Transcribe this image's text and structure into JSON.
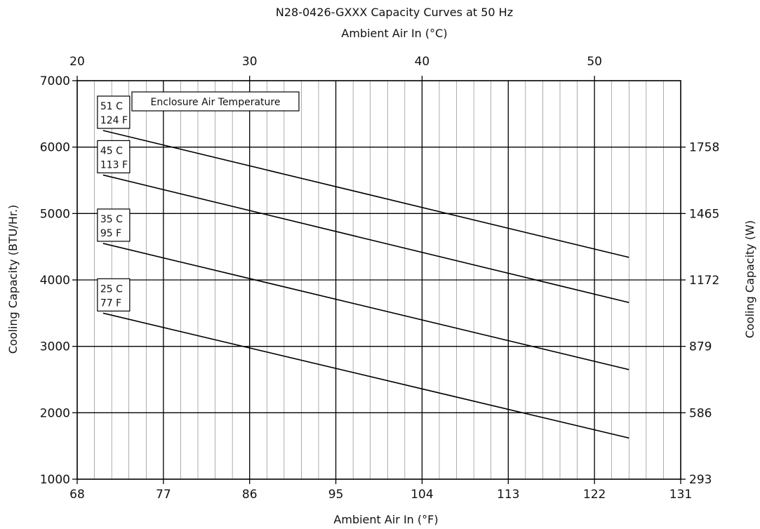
{
  "chart_data": {
    "type": "line",
    "title": "N28-0426-GXXX Capacity Curves at 50 Hz",
    "x_top_label": "Ambient Air In (°C)",
    "xlabel": "Ambient Air In (°F)",
    "ylabel": "Cooling Capacity (BTU/Hr.)",
    "y2label": "Cooling Capacity (W)",
    "xlim": [
      68,
      131
    ],
    "ylim": [
      1000,
      7000
    ],
    "x_ticks": [
      68,
      77,
      86,
      95,
      104,
      113,
      122,
      131
    ],
    "x_top_ticks": [
      20,
      30,
      40,
      50
    ],
    "x_top_tick_values_F": [
      68,
      86,
      104,
      122
    ],
    "y_ticks": [
      1000,
      2000,
      3000,
      4000,
      5000,
      6000,
      7000
    ],
    "y2_ticks": [
      {
        "label": "293",
        "y": 1000
      },
      {
        "label": "586",
        "y": 2000
      },
      {
        "label": "879",
        "y": 3000
      },
      {
        "label": "1172",
        "y": 4000
      },
      {
        "label": "1465",
        "y": 5000
      },
      {
        "label": "1758",
        "y": 6000
      }
    ],
    "grid": true,
    "legend_box": "Enclosure Air Temperature",
    "series": [
      {
        "name_lines": [
          "51 C",
          "124 F"
        ],
        "x": [
          70.7,
          125.6
        ],
        "y": [
          6250,
          4340
        ]
      },
      {
        "name_lines": [
          "45 C",
          "113 F"
        ],
        "x": [
          70.7,
          125.6
        ],
        "y": [
          5580,
          3660
        ]
      },
      {
        "name_lines": [
          "35 C",
          "95 F"
        ],
        "x": [
          70.7,
          125.6
        ],
        "y": [
          4550,
          2650
        ]
      },
      {
        "name_lines": [
          "25 C",
          "77 F"
        ],
        "x": [
          70.7,
          125.6
        ],
        "y": [
          3500,
          1620
        ]
      }
    ]
  }
}
